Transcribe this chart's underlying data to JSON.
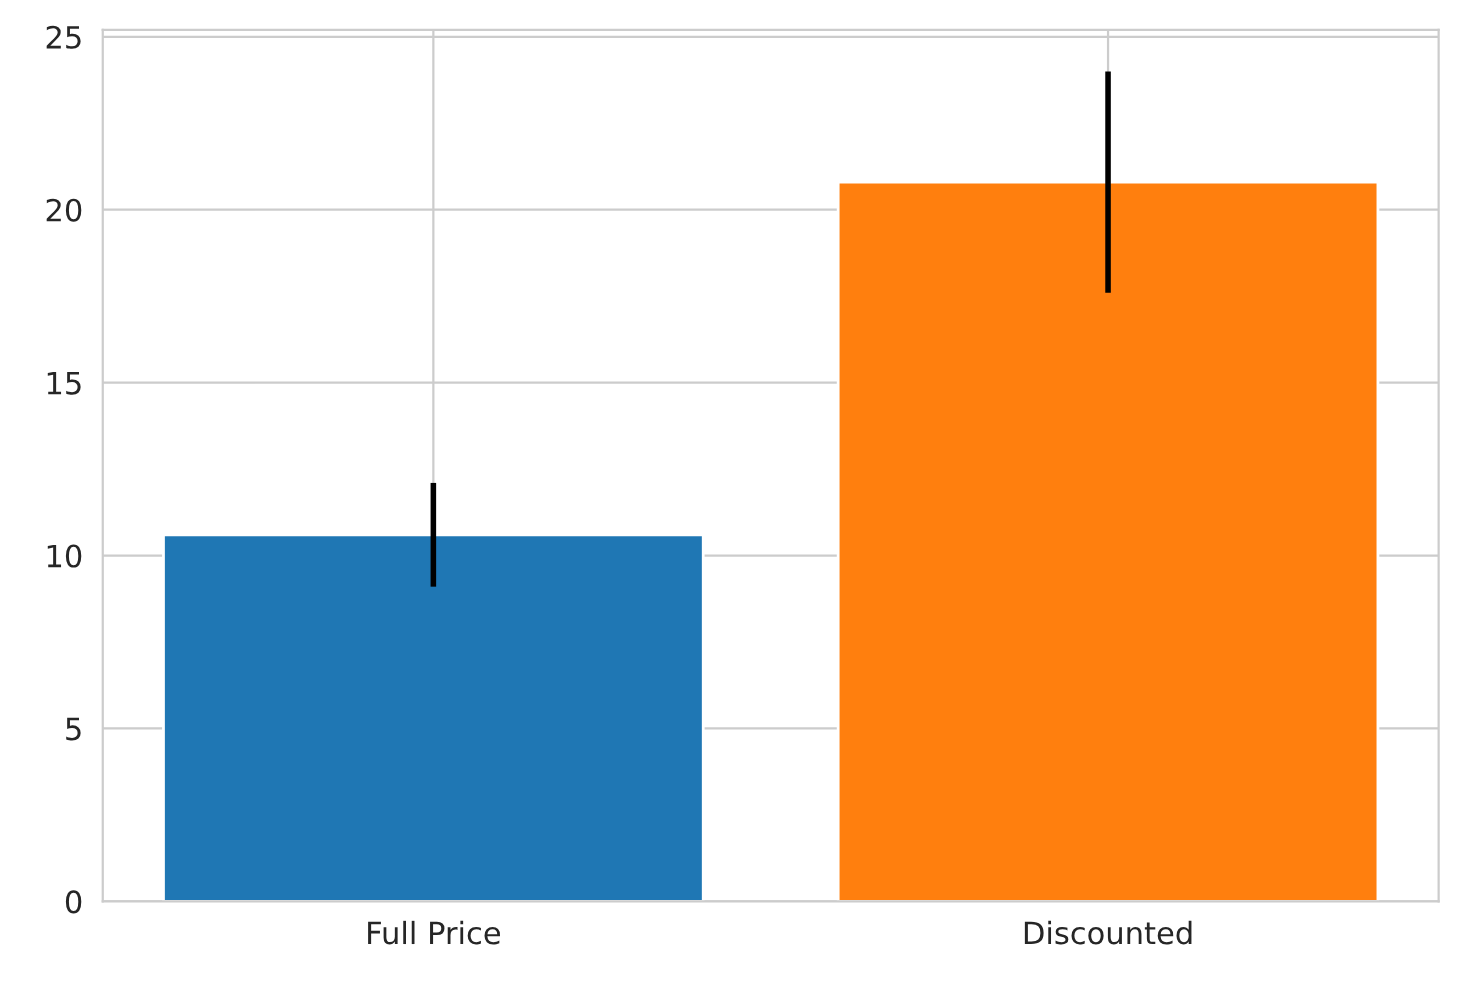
{
  "chart_data": {
    "type": "bar",
    "categories": [
      "Full Price",
      "Discounted"
    ],
    "values": [
      10.6,
      20.8
    ],
    "colors": [
      "#1f77b4",
      "#ff7f0e"
    ],
    "errors": [
      1.5,
      3.2
    ],
    "ylim": [
      0,
      25.2
    ],
    "yticks": [
      0,
      5,
      10,
      15,
      20,
      25
    ],
    "grid": true
  }
}
